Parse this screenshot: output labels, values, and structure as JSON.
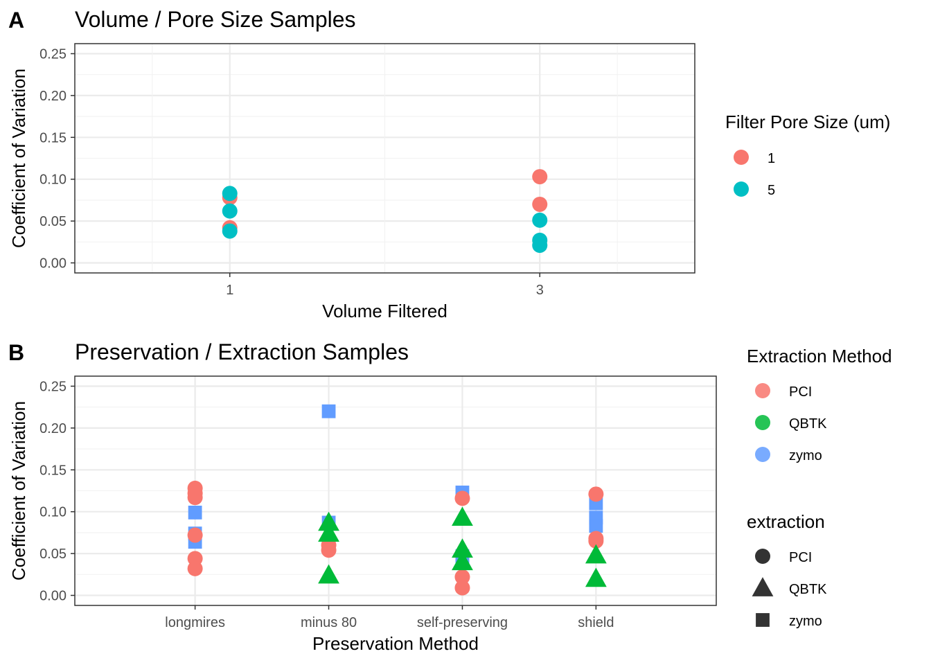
{
  "chart_data": [
    {
      "tag": "A",
      "type": "scatter",
      "title": "Volume / Pore Size Samples",
      "xlabel": "Volume Filtered",
      "ylabel": "Coefficient of Variation",
      "x_ticks": [
        1,
        3
      ],
      "x_range": [
        0,
        4
      ],
      "ylim": [
        -0.012,
        0.262
      ],
      "y_ticks": [
        "0.00",
        "0.05",
        "0.10",
        "0.15",
        "0.20",
        "0.25"
      ],
      "grid": true,
      "legend": {
        "placement": "right",
        "title": "Filter Pore Size (um)",
        "entries": [
          {
            "label": "1",
            "color": "#F8766D",
            "shape": "circle"
          },
          {
            "label": "5",
            "color": "#00BFC4",
            "shape": "circle"
          }
        ]
      },
      "series": [
        {
          "name": "1",
          "color": "#F8766D",
          "x": [
            1,
            1,
            3,
            3
          ],
          "y": [
            0.078,
            0.042,
            0.103,
            0.07
          ]
        },
        {
          "name": "5",
          "color": "#00BFC4",
          "x": [
            1,
            1,
            1,
            3,
            3,
            3
          ],
          "y": [
            0.083,
            0.062,
            0.038,
            0.051,
            0.027,
            0.021
          ]
        }
      ]
    },
    {
      "tag": "B",
      "type": "scatter",
      "title": "Preservation / Extraction Samples",
      "xlabel": "Preservation Method",
      "ylabel": "Coefficient of Variation",
      "categories": [
        "longmires",
        "minus 80",
        "self-preserving",
        "shield"
      ],
      "ylim": [
        -0.012,
        0.262
      ],
      "y_ticks": [
        "0.00",
        "0.05",
        "0.10",
        "0.15",
        "0.20",
        "0.25"
      ],
      "grid": true,
      "legend": {
        "placement": "right",
        "color_title": "Extraction Method",
        "color_entries": [
          {
            "label": "PCI",
            "color": "#F8766D"
          },
          {
            "label": "QBTK",
            "color": "#00BA38"
          },
          {
            "label": "zymo",
            "color": "#619CFF"
          }
        ],
        "shape_title": "extraction",
        "shape_entries": [
          {
            "label": "PCI",
            "shape": "circle"
          },
          {
            "label": "QBTK",
            "shape": "triangle"
          },
          {
            "label": "zymo",
            "shape": "square"
          }
        ]
      },
      "series": [
        {
          "name": "zymo",
          "color": "#619CFF",
          "shape": "square",
          "categories": [
            "longmires",
            "longmires",
            "longmires",
            "minus 80",
            "minus 80",
            "self-preserving",
            "self-preserving",
            "self-preserving",
            "shield",
            "shield",
            "shield"
          ],
          "y": [
            0.099,
            0.074,
            0.064,
            0.22,
            0.087,
            0.123,
            0.047,
            0.039,
            0.11,
            0.093,
            0.083
          ]
        },
        {
          "name": "PCI",
          "color": "#F8766D",
          "shape": "circle",
          "categories": [
            "longmires",
            "longmires",
            "longmires",
            "longmires",
            "longmires",
            "longmires",
            "minus 80",
            "minus 80",
            "self-preserving",
            "self-preserving",
            "self-preserving",
            "shield",
            "shield",
            "shield"
          ],
          "y": [
            0.128,
            0.122,
            0.117,
            0.072,
            0.044,
            0.032,
            0.06,
            0.054,
            0.116,
            0.022,
            0.009,
            0.121,
            0.068,
            0.065
          ]
        },
        {
          "name": "QBTK",
          "color": "#00BA38",
          "shape": "triangle",
          "categories": [
            "minus 80",
            "minus 80",
            "minus 80",
            "self-preserving",
            "self-preserving",
            "self-preserving",
            "shield",
            "shield"
          ],
          "y": [
            0.087,
            0.074,
            0.024,
            0.093,
            0.055,
            0.04,
            0.048,
            0.02
          ]
        }
      ]
    }
  ]
}
